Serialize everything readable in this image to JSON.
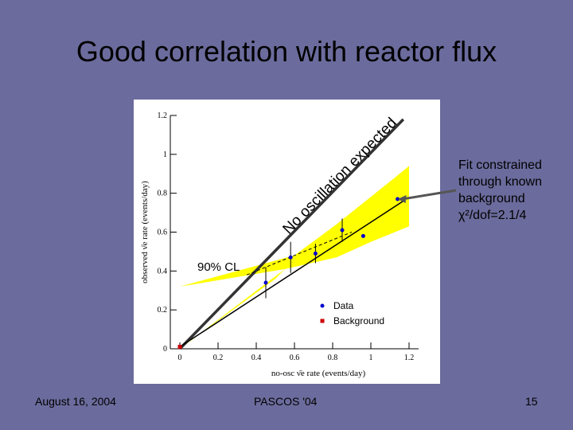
{
  "slide": {
    "title": "Good correlation with reactor flux",
    "annotation_lines": [
      "Fit constrained",
      "through known",
      "background",
      "χ²/dof=2.1/4"
    ],
    "footer_date": "August 16, 2004",
    "footer_conference": "PASCOS '04",
    "footer_page": "15"
  },
  "colors": {
    "background": "#6b6b9d",
    "band": "#ffff00",
    "data": "#0000cc",
    "background_point": "#cc0000",
    "line": "#333333"
  },
  "chart_data": {
    "type": "scatter",
    "xlabel": "no-osc ν̄e rate (events/day)",
    "ylabel": "observed ν̄e rate (events/day)",
    "xlim": [
      -0.05,
      1.25
    ],
    "ylim": [
      0,
      1.2
    ],
    "x_ticks": [
      "0",
      "0.2",
      "0.4",
      "0.6",
      "0.8",
      "1",
      "1.2"
    ],
    "y_ticks": [
      "0",
      "0.2",
      "0.4",
      "0.6",
      "0.8",
      "1",
      "1.2"
    ],
    "grid": false,
    "legend": {
      "placement": "lower-right",
      "entries": [
        "Data",
        "Background"
      ]
    },
    "diagonal_label": "No oscillation expected",
    "band_label": "90% CL",
    "data_points": [
      {
        "x": 0.45,
        "y": 0.34,
        "err": 0.08
      },
      {
        "x": 0.58,
        "y": 0.47,
        "err": 0.08
      },
      {
        "x": 0.71,
        "y": 0.49,
        "err": 0.05
      },
      {
        "x": 0.85,
        "y": 0.61,
        "err": 0.06
      },
      {
        "x": 0.96,
        "y": 0.58,
        "err": 0.0
      },
      {
        "x": 1.14,
        "y": 0.77,
        "err": 0.0
      }
    ],
    "background_point": {
      "x": 0.0,
      "y": 0.01
    },
    "fit_line": [
      [
        0.0,
        0.01
      ],
      [
        1.17,
        0.76
      ]
    ],
    "fit_dashed": [
      [
        0.35,
        0.38
      ],
      [
        0.9,
        0.6
      ]
    ],
    "no_osc_line": [
      [
        0.0,
        0.0
      ],
      [
        1.17,
        1.18
      ]
    ],
    "band_upper": [
      [
        0.0,
        0.32
      ],
      [
        0.6,
        0.48
      ],
      [
        0.82,
        0.64
      ],
      [
        1.1,
        0.86
      ],
      [
        1.2,
        0.94
      ]
    ],
    "band_lower": [
      [
        0.0,
        0.32
      ],
      [
        0.55,
        0.41
      ],
      [
        0.82,
        0.47
      ],
      [
        1.0,
        0.55
      ],
      [
        1.2,
        0.63
      ]
    ],
    "band_bottom_wedge": [
      [
        0.0,
        0.0
      ],
      [
        0.55,
        0.41
      ],
      [
        0.5,
        0.36
      ],
      [
        0.0,
        0.0
      ]
    ]
  }
}
